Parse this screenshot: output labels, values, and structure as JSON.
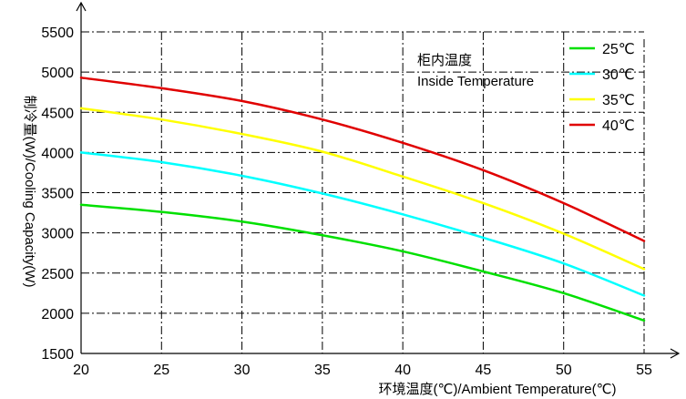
{
  "chart_data": {
    "type": "line",
    "xlabel": "环境温度(℃)/Ambient Temperature(℃)",
    "ylabel": "制冷量(W)/Cooling Capacity(W)",
    "xlim": [
      20,
      55
    ],
    "ylim": [
      1500,
      5500
    ],
    "x_ticks": [
      "20",
      "25",
      "30",
      "35",
      "40",
      "45",
      "50",
      "55"
    ],
    "y_ticks": [
      "1500",
      "2000",
      "2500",
      "3000",
      "3500",
      "4000",
      "4500",
      "5000",
      "5500"
    ],
    "grid": true,
    "legend_position": "top-right",
    "legend_title": [
      "柜内温度",
      "Inside Temperature"
    ],
    "x": [
      20,
      25,
      30,
      35,
      40,
      45,
      50,
      55
    ],
    "series": [
      {
        "name": "25℃",
        "color": "#00e000",
        "values": [
          3350,
          3260,
          3140,
          2970,
          2770,
          2520,
          2250,
          1910
        ]
      },
      {
        "name": "30℃",
        "color": "#00ffff",
        "values": [
          4000,
          3880,
          3710,
          3490,
          3230,
          2940,
          2620,
          2220
        ]
      },
      {
        "name": "35℃",
        "color": "#ffff00",
        "values": [
          4550,
          4410,
          4230,
          4010,
          3700,
          3370,
          2990,
          2550
        ]
      },
      {
        "name": "40℃",
        "color": "#e00000",
        "values": [
          4930,
          4800,
          4640,
          4410,
          4120,
          3780,
          3370,
          2900
        ]
      }
    ]
  }
}
